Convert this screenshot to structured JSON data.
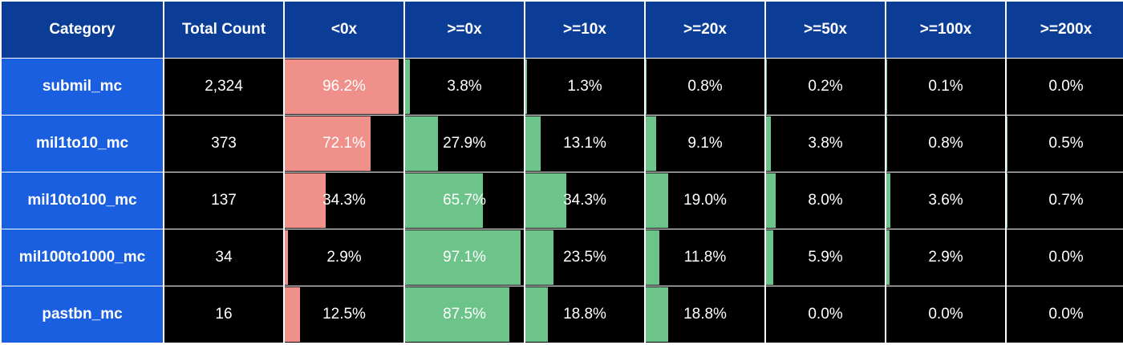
{
  "chart_data": {
    "type": "table",
    "columns": [
      "Category",
      "Total Count",
      "<0x",
      ">=0x",
      ">=10x",
      ">=20x",
      ">=50x",
      ">=100x",
      ">=200x"
    ],
    "rows": [
      {
        "category": "submil_mc",
        "total": "2,324",
        "cells": [
          "96.2%",
          "3.8%",
          "1.3%",
          "0.8%",
          "0.2%",
          "0.1%",
          "0.0%"
        ],
        "values": [
          96.2,
          3.8,
          1.3,
          0.8,
          0.2,
          0.1,
          0.0
        ]
      },
      {
        "category": "mil1to10_mc",
        "total": "373",
        "cells": [
          "72.1%",
          "27.9%",
          "13.1%",
          "9.1%",
          "3.8%",
          "0.8%",
          "0.5%"
        ],
        "values": [
          72.1,
          27.9,
          13.1,
          9.1,
          3.8,
          0.8,
          0.5
        ]
      },
      {
        "category": "mil10to100_mc",
        "total": "137",
        "cells": [
          "34.3%",
          "65.7%",
          "34.3%",
          "19.0%",
          "8.0%",
          "3.6%",
          "0.7%"
        ],
        "values": [
          34.3,
          65.7,
          34.3,
          19.0,
          8.0,
          3.6,
          0.7
        ]
      },
      {
        "category": "mil100to1000_mc",
        "total": "34",
        "cells": [
          "2.9%",
          "97.1%",
          "23.5%",
          "11.8%",
          "5.9%",
          "2.9%",
          "0.0%"
        ],
        "values": [
          2.9,
          97.1,
          23.5,
          11.8,
          5.9,
          2.9,
          0.0
        ]
      },
      {
        "category": "pastbn_mc",
        "total": "16",
        "cells": [
          "12.5%",
          "87.5%",
          "18.8%",
          "18.8%",
          "0.0%",
          "0.0%",
          "0.0%"
        ],
        "values": [
          12.5,
          87.5,
          18.8,
          18.8,
          0.0,
          0.0,
          0.0
        ]
      }
    ],
    "bar_scale_max": 100
  },
  "colors": {
    "header_bg": "#0b3c96",
    "category_bg": "#1a5fe0",
    "cell_bg": "#000000",
    "negative_bar": "#f0908a",
    "positive_bar": "#6cc48a",
    "text": "#ffffff"
  }
}
